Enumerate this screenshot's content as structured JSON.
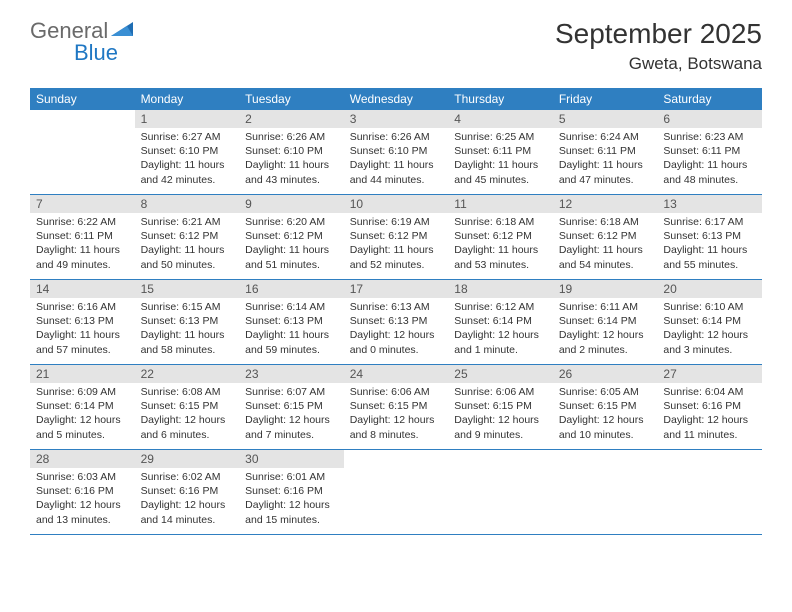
{
  "brand": {
    "word1": "General",
    "word2": "Blue"
  },
  "title": "September 2025",
  "location": "Gweta, Botswana",
  "colors": {
    "header_bg": "#2f7fc1",
    "header_text": "#ffffff",
    "daynum_bg": "#e4e4e4",
    "daynum_text": "#555555",
    "body_text": "#333333",
    "brand_gray": "#6a6a6a",
    "brand_blue": "#1f77c3",
    "divider": "#2f7fc1"
  },
  "dow": [
    "Sunday",
    "Monday",
    "Tuesday",
    "Wednesday",
    "Thursday",
    "Friday",
    "Saturday"
  ],
  "weeks": [
    [
      null,
      {
        "n": "1",
        "sr": "Sunrise: 6:27 AM",
        "ss": "Sunset: 6:10 PM",
        "dl1": "Daylight: 11 hours",
        "dl2": "and 42 minutes."
      },
      {
        "n": "2",
        "sr": "Sunrise: 6:26 AM",
        "ss": "Sunset: 6:10 PM",
        "dl1": "Daylight: 11 hours",
        "dl2": "and 43 minutes."
      },
      {
        "n": "3",
        "sr": "Sunrise: 6:26 AM",
        "ss": "Sunset: 6:10 PM",
        "dl1": "Daylight: 11 hours",
        "dl2": "and 44 minutes."
      },
      {
        "n": "4",
        "sr": "Sunrise: 6:25 AM",
        "ss": "Sunset: 6:11 PM",
        "dl1": "Daylight: 11 hours",
        "dl2": "and 45 minutes."
      },
      {
        "n": "5",
        "sr": "Sunrise: 6:24 AM",
        "ss": "Sunset: 6:11 PM",
        "dl1": "Daylight: 11 hours",
        "dl2": "and 47 minutes."
      },
      {
        "n": "6",
        "sr": "Sunrise: 6:23 AM",
        "ss": "Sunset: 6:11 PM",
        "dl1": "Daylight: 11 hours",
        "dl2": "and 48 minutes."
      }
    ],
    [
      {
        "n": "7",
        "sr": "Sunrise: 6:22 AM",
        "ss": "Sunset: 6:11 PM",
        "dl1": "Daylight: 11 hours",
        "dl2": "and 49 minutes."
      },
      {
        "n": "8",
        "sr": "Sunrise: 6:21 AM",
        "ss": "Sunset: 6:12 PM",
        "dl1": "Daylight: 11 hours",
        "dl2": "and 50 minutes."
      },
      {
        "n": "9",
        "sr": "Sunrise: 6:20 AM",
        "ss": "Sunset: 6:12 PM",
        "dl1": "Daylight: 11 hours",
        "dl2": "and 51 minutes."
      },
      {
        "n": "10",
        "sr": "Sunrise: 6:19 AM",
        "ss": "Sunset: 6:12 PM",
        "dl1": "Daylight: 11 hours",
        "dl2": "and 52 minutes."
      },
      {
        "n": "11",
        "sr": "Sunrise: 6:18 AM",
        "ss": "Sunset: 6:12 PM",
        "dl1": "Daylight: 11 hours",
        "dl2": "and 53 minutes."
      },
      {
        "n": "12",
        "sr": "Sunrise: 6:18 AM",
        "ss": "Sunset: 6:12 PM",
        "dl1": "Daylight: 11 hours",
        "dl2": "and 54 minutes."
      },
      {
        "n": "13",
        "sr": "Sunrise: 6:17 AM",
        "ss": "Sunset: 6:13 PM",
        "dl1": "Daylight: 11 hours",
        "dl2": "and 55 minutes."
      }
    ],
    [
      {
        "n": "14",
        "sr": "Sunrise: 6:16 AM",
        "ss": "Sunset: 6:13 PM",
        "dl1": "Daylight: 11 hours",
        "dl2": "and 57 minutes."
      },
      {
        "n": "15",
        "sr": "Sunrise: 6:15 AM",
        "ss": "Sunset: 6:13 PM",
        "dl1": "Daylight: 11 hours",
        "dl2": "and 58 minutes."
      },
      {
        "n": "16",
        "sr": "Sunrise: 6:14 AM",
        "ss": "Sunset: 6:13 PM",
        "dl1": "Daylight: 11 hours",
        "dl2": "and 59 minutes."
      },
      {
        "n": "17",
        "sr": "Sunrise: 6:13 AM",
        "ss": "Sunset: 6:13 PM",
        "dl1": "Daylight: 12 hours",
        "dl2": "and 0 minutes."
      },
      {
        "n": "18",
        "sr": "Sunrise: 6:12 AM",
        "ss": "Sunset: 6:14 PM",
        "dl1": "Daylight: 12 hours",
        "dl2": "and 1 minute."
      },
      {
        "n": "19",
        "sr": "Sunrise: 6:11 AM",
        "ss": "Sunset: 6:14 PM",
        "dl1": "Daylight: 12 hours",
        "dl2": "and 2 minutes."
      },
      {
        "n": "20",
        "sr": "Sunrise: 6:10 AM",
        "ss": "Sunset: 6:14 PM",
        "dl1": "Daylight: 12 hours",
        "dl2": "and 3 minutes."
      }
    ],
    [
      {
        "n": "21",
        "sr": "Sunrise: 6:09 AM",
        "ss": "Sunset: 6:14 PM",
        "dl1": "Daylight: 12 hours",
        "dl2": "and 5 minutes."
      },
      {
        "n": "22",
        "sr": "Sunrise: 6:08 AM",
        "ss": "Sunset: 6:15 PM",
        "dl1": "Daylight: 12 hours",
        "dl2": "and 6 minutes."
      },
      {
        "n": "23",
        "sr": "Sunrise: 6:07 AM",
        "ss": "Sunset: 6:15 PM",
        "dl1": "Daylight: 12 hours",
        "dl2": "and 7 minutes."
      },
      {
        "n": "24",
        "sr": "Sunrise: 6:06 AM",
        "ss": "Sunset: 6:15 PM",
        "dl1": "Daylight: 12 hours",
        "dl2": "and 8 minutes."
      },
      {
        "n": "25",
        "sr": "Sunrise: 6:06 AM",
        "ss": "Sunset: 6:15 PM",
        "dl1": "Daylight: 12 hours",
        "dl2": "and 9 minutes."
      },
      {
        "n": "26",
        "sr": "Sunrise: 6:05 AM",
        "ss": "Sunset: 6:15 PM",
        "dl1": "Daylight: 12 hours",
        "dl2": "and 10 minutes."
      },
      {
        "n": "27",
        "sr": "Sunrise: 6:04 AM",
        "ss": "Sunset: 6:16 PM",
        "dl1": "Daylight: 12 hours",
        "dl2": "and 11 minutes."
      }
    ],
    [
      {
        "n": "28",
        "sr": "Sunrise: 6:03 AM",
        "ss": "Sunset: 6:16 PM",
        "dl1": "Daylight: 12 hours",
        "dl2": "and 13 minutes."
      },
      {
        "n": "29",
        "sr": "Sunrise: 6:02 AM",
        "ss": "Sunset: 6:16 PM",
        "dl1": "Daylight: 12 hours",
        "dl2": "and 14 minutes."
      },
      {
        "n": "30",
        "sr": "Sunrise: 6:01 AM",
        "ss": "Sunset: 6:16 PM",
        "dl1": "Daylight: 12 hours",
        "dl2": "and 15 minutes."
      },
      null,
      null,
      null,
      null
    ]
  ]
}
